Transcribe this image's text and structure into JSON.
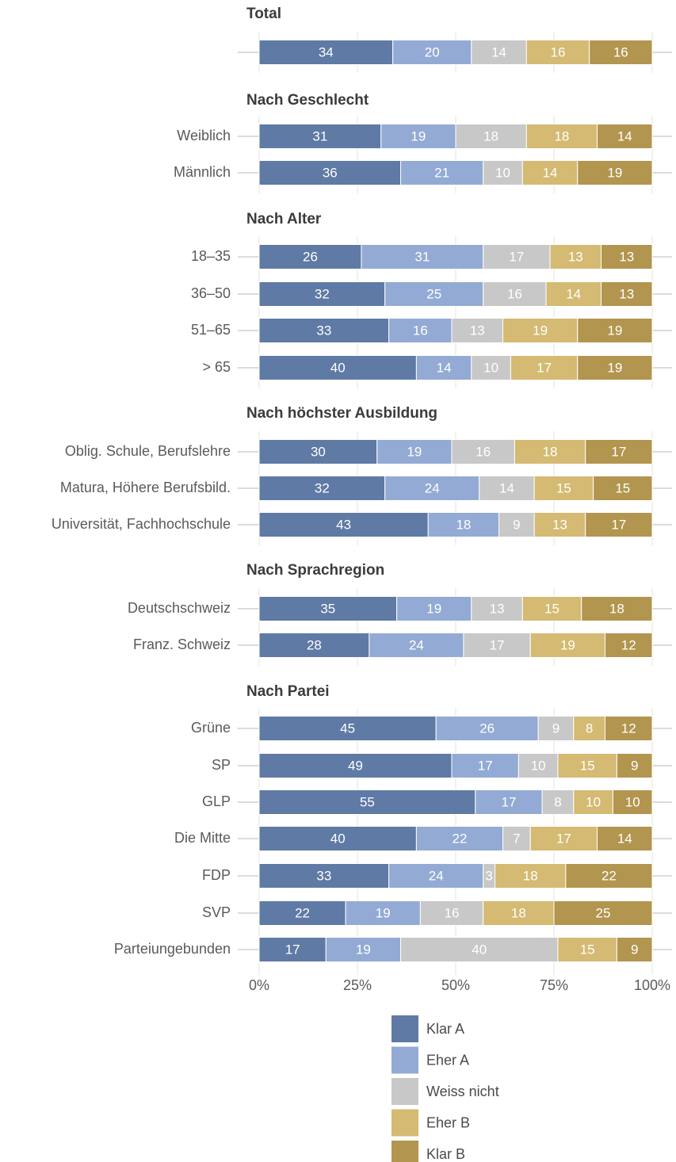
{
  "chart_data": {
    "type": "bar",
    "orientation": "horizontal",
    "stacked": true,
    "xlim": [
      0,
      100
    ],
    "x_ticks": [
      "0%",
      "25%",
      "50%",
      "75%",
      "100%"
    ],
    "grid": true,
    "legend_position": "bottom",
    "series": [
      {
        "name": "Klar A",
        "color": "#5f7aa5"
      },
      {
        "name": "Eher A",
        "color": "#93aad4"
      },
      {
        "name": "Weiss nicht",
        "color": "#c8c8c8"
      },
      {
        "name": "Eher B",
        "color": "#d4ba72"
      },
      {
        "name": "Klar B",
        "color": "#b2954e"
      }
    ],
    "groups": [
      {
        "title": "Total",
        "rows": [
          {
            "label": "",
            "values": [
              34,
              20,
              14,
              16,
              16
            ]
          }
        ]
      },
      {
        "title": "Nach Geschlecht",
        "rows": [
          {
            "label": "Weiblich",
            "values": [
              31,
              19,
              18,
              18,
              14
            ]
          },
          {
            "label": "Männlich",
            "values": [
              36,
              21,
              10,
              14,
              19
            ]
          }
        ]
      },
      {
        "title": "Nach Alter",
        "rows": [
          {
            "label": "18–35",
            "values": [
              26,
              31,
              17,
              13,
              13
            ]
          },
          {
            "label": "36–50",
            "values": [
              32,
              25,
              16,
              14,
              13
            ]
          },
          {
            "label": "51–65",
            "values": [
              33,
              16,
              13,
              19,
              19
            ]
          },
          {
            "label": "> 65",
            "values": [
              40,
              14,
              10,
              17,
              19
            ]
          }
        ]
      },
      {
        "title": "Nach höchster Ausbildung",
        "rows": [
          {
            "label": "Oblig. Schule, Berufslehre",
            "values": [
              30,
              19,
              16,
              18,
              17
            ]
          },
          {
            "label": "Matura, Höhere Berufsbild.",
            "values": [
              32,
              24,
              14,
              15,
              15
            ]
          },
          {
            "label": "Universität, Fachhochschule",
            "values": [
              43,
              18,
              9,
              13,
              17
            ]
          }
        ]
      },
      {
        "title": "Nach Sprachregion",
        "rows": [
          {
            "label": "Deutschschweiz",
            "values": [
              35,
              19,
              13,
              15,
              18
            ]
          },
          {
            "label": "Franz. Schweiz",
            "values": [
              28,
              24,
              17,
              19,
              12
            ]
          }
        ]
      },
      {
        "title": "Nach Partei",
        "rows": [
          {
            "label": "Grüne",
            "values": [
              45,
              26,
              9,
              8,
              12
            ]
          },
          {
            "label": "SP",
            "values": [
              49,
              17,
              10,
              15,
              9
            ]
          },
          {
            "label": "GLP",
            "values": [
              55,
              17,
              8,
              10,
              10
            ]
          },
          {
            "label": "Die Mitte",
            "values": [
              40,
              22,
              7,
              17,
              14
            ]
          },
          {
            "label": "FDP",
            "values": [
              33,
              24,
              3,
              18,
              22
            ]
          },
          {
            "label": "SVP",
            "values": [
              22,
              19,
              16,
              18,
              25
            ]
          },
          {
            "label": "Parteiungebunden",
            "values": [
              17,
              19,
              40,
              15,
              9
            ]
          }
        ]
      }
    ]
  }
}
